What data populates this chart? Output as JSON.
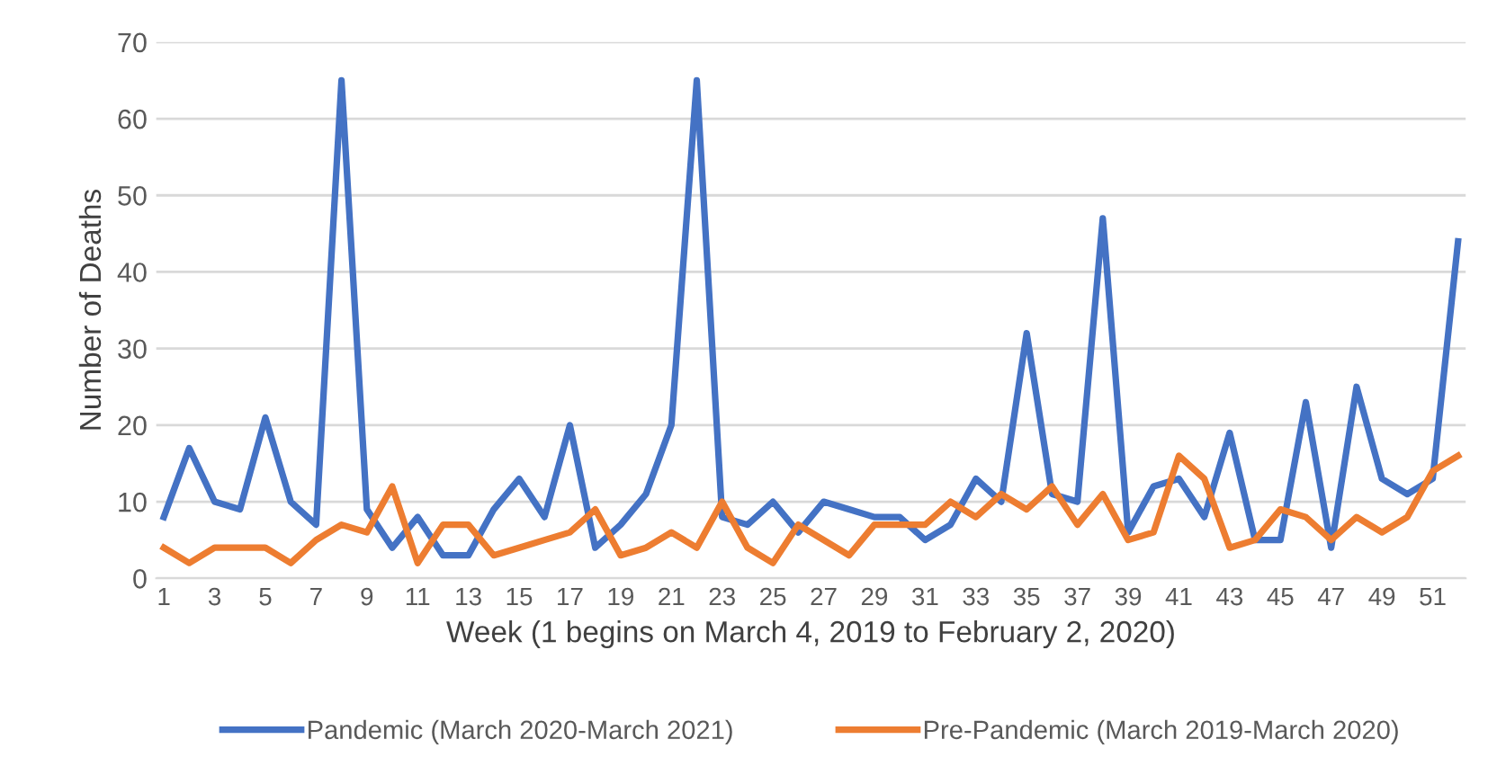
{
  "chart_data": {
    "type": "line",
    "xlabel": "Week (1 begins on March 4, 2019 to February 2, 2020)",
    "ylabel": "Number of Deaths",
    "categories": [
      "1",
      null,
      "3",
      null,
      "5",
      null,
      "7",
      null,
      "9",
      null,
      "11",
      null,
      "13",
      null,
      "15",
      null,
      "17",
      null,
      "19",
      null,
      "21",
      null,
      "23",
      null,
      "25",
      null,
      "27",
      null,
      "29",
      null,
      "31",
      null,
      "33",
      null,
      "35",
      null,
      "37",
      null,
      "39",
      null,
      "41",
      null,
      "43",
      null,
      "45",
      null,
      "47",
      null,
      "49",
      null,
      "51",
      null
    ],
    "series": [
      {
        "name": "Pandemic (March 2020-March 2021)",
        "color": "#4472c4",
        "values": [
          8,
          17,
          10,
          9,
          21,
          10,
          7,
          65,
          9,
          4,
          8,
          3,
          3,
          9,
          13,
          8,
          20,
          4,
          7,
          11,
          20,
          65,
          8,
          7,
          10,
          6,
          10,
          9,
          8,
          8,
          5,
          7,
          13,
          10,
          32,
          11,
          10,
          47,
          6,
          12,
          13,
          8,
          19,
          5,
          5,
          23,
          4,
          25,
          13,
          11,
          13,
          44
        ]
      },
      {
        "name": "Pre-Pandemic (March 2019-March 2020)",
        "color": "#ed7d31",
        "values": [
          4,
          2,
          4,
          4,
          4,
          2,
          5,
          7,
          6,
          12,
          2,
          7,
          7,
          3,
          4,
          5,
          6,
          9,
          3,
          4,
          6,
          4,
          10,
          4,
          2,
          7,
          5,
          3,
          7,
          7,
          7,
          10,
          8,
          11,
          9,
          12,
          7,
          11,
          5,
          6,
          16,
          13,
          4,
          5,
          9,
          8,
          5,
          8,
          6,
          8,
          14,
          16
        ]
      }
    ],
    "ylim": [
      0,
      70
    ],
    "yticks": [
      0,
      10,
      20,
      30,
      40,
      50,
      60,
      70
    ],
    "grid": "y",
    "legend": "bottom",
    "marker": "none",
    "line_style": "solid"
  }
}
